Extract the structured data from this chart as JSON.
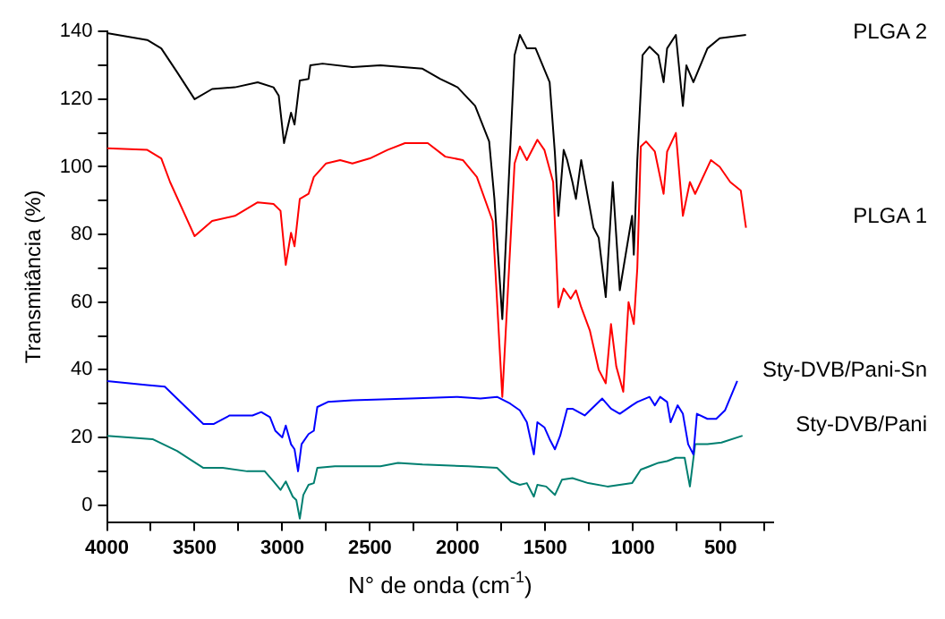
{
  "chart_data": {
    "type": "line",
    "xlabel": "N° de onda (cm$^{-1}$)",
    "ylabel": "Transmitância (%)",
    "xlim": [
      4000,
      200
    ],
    "xticks": [
      4000,
      {
        "value": 3750,
        "label": null
      },
      3500,
      {
        "value": 3250,
        "label": null
      },
      3000,
      {
        "value": 2750,
        "label": null
      },
      2500,
      {
        "value": 2250,
        "label": null
      },
      2000,
      {
        "value": 1750,
        "label": null
      },
      1500,
      {
        "value": 1250,
        "label": null
      },
      1000,
      {
        "value": 750,
        "label": null
      },
      500,
      {
        "value": 250,
        "label": null
      }
    ],
    "ylim": [
      -5,
      140
    ],
    "yticks": [
      0,
      {
        "value": 10,
        "label": null
      },
      20,
      {
        "value": 30,
        "label": null
      },
      40,
      {
        "value": 50,
        "label": null
      },
      60,
      {
        "value": 70,
        "label": null
      },
      80,
      {
        "value": 90,
        "label": null
      },
      100,
      {
        "value": 110,
        "label": null
      },
      120,
      {
        "value": 130,
        "label": null
      },
      140
    ],
    "grid": false,
    "legend": false,
    "series": [
      {
        "name": "PLGA 2",
        "color": "#000000",
        "x": [
          4000,
          3770,
          3690,
          3600,
          3500,
          3400,
          3270,
          3140,
          3050,
          3020,
          2990,
          2950,
          2930,
          2900,
          2850,
          2840,
          2770,
          2600,
          2440,
          2200,
          2100,
          2000,
          1900,
          1820,
          1790,
          1745,
          1675,
          1645,
          1605,
          1555,
          1475,
          1445,
          1425,
          1395,
          1375,
          1345,
          1325,
          1295,
          1255,
          1225,
          1195,
          1155,
          1115,
          1075,
          1005,
          995,
          975,
          945,
          905,
          855,
          825,
          805,
          755,
          715,
          695,
          655,
          575,
          505,
          355
        ],
        "values": [
          139.5,
          137.5,
          135,
          128,
          120,
          123,
          123.5,
          125,
          123.5,
          121,
          107,
          116,
          112.5,
          125.5,
          126,
          130,
          130.5,
          129.5,
          130,
          129,
          126,
          123.5,
          118,
          107.5,
          90.5,
          55,
          133,
          139,
          135,
          135,
          125,
          104,
          85.5,
          105,
          102,
          95.5,
          90.5,
          102,
          90.5,
          82,
          79,
          61.5,
          95.5,
          63.5,
          85.5,
          74,
          102,
          133,
          135.5,
          133,
          125,
          135,
          139,
          118,
          130,
          125,
          135,
          138,
          139
        ]
      },
      {
        "name": "PLGA 1",
        "color": "#ff0000",
        "x": [
          4000,
          3770,
          3690,
          3640,
          3500,
          3400,
          3270,
          3140,
          3050,
          3010,
          2980,
          2950,
          2930,
          2900,
          2850,
          2820,
          2750,
          2670,
          2600,
          2500,
          2400,
          2300,
          2170,
          2070,
          1970,
          1890,
          1800,
          1745,
          1675,
          1645,
          1605,
          1545,
          1505,
          1455,
          1425,
          1395,
          1355,
          1325,
          1295,
          1245,
          1195,
          1155,
          1125,
          1095,
          1055,
          1025,
          995,
          975,
          955,
          925,
          875,
          825,
          805,
          755,
          715,
          675,
          645,
          555,
          505,
          445,
          385,
          355
        ],
        "values": [
          105.5,
          105,
          102.5,
          95.5,
          79.5,
          84,
          85.5,
          89.5,
          89,
          87,
          71,
          80.5,
          76.5,
          90.5,
          92,
          97,
          101,
          102,
          101,
          102.5,
          105,
          107,
          107,
          103,
          102,
          97,
          84,
          32,
          101,
          106,
          102,
          108,
          105,
          95.5,
          58.5,
          64,
          61,
          63.5,
          58.5,
          51.5,
          40,
          36,
          53.5,
          41,
          33.5,
          60,
          53.5,
          70,
          106,
          107.5,
          104.5,
          92,
          104.5,
          110,
          85.5,
          95.5,
          92,
          102,
          100,
          95.5,
          93,
          82
        ]
      },
      {
        "name": "Sty-DVB/Pani-Sn",
        "color": "#0000ff",
        "x": [
          4000,
          3770,
          3670,
          3590,
          3450,
          3390,
          3300,
          3170,
          3120,
          3070,
          3040,
          3000,
          2980,
          2950,
          2930,
          2910,
          2890,
          2850,
          2820,
          2800,
          2740,
          2600,
          2270,
          2000,
          1870,
          1775,
          1700,
          1645,
          1605,
          1565,
          1545,
          1505,
          1475,
          1445,
          1415,
          1375,
          1345,
          1275,
          1175,
          1125,
          1075,
          1005,
          975,
          905,
          875,
          845,
          805,
          785,
          745,
          715,
          685,
          655,
          635,
          575,
          525,
          475,
          405
        ],
        "values": [
          36.7,
          35.5,
          35,
          31,
          24,
          24,
          26.5,
          26.5,
          27.5,
          26,
          22,
          20,
          23.5,
          18,
          16.5,
          10,
          18,
          21,
          22,
          29,
          30.5,
          31,
          31.5,
          32,
          31.5,
          32,
          30,
          28,
          24.5,
          15,
          24.5,
          23,
          19.5,
          16.5,
          20.5,
          28.5,
          28.5,
          26.5,
          31.5,
          28.5,
          27,
          29.5,
          30.5,
          32,
          29.5,
          32,
          30.5,
          24.5,
          29.5,
          27,
          18,
          15,
          27,
          25.5,
          25.5,
          28,
          36.7
        ]
      },
      {
        "name": "Sty-DVB/Pani",
        "color": "#007f70",
        "x": [
          4000,
          3740,
          3600,
          3450,
          3340,
          3200,
          3100,
          3050,
          3010,
          2980,
          2940,
          2920,
          2900,
          2880,
          2850,
          2820,
          2800,
          2700,
          2440,
          2340,
          2200,
          1940,
          1775,
          1695,
          1645,
          1605,
          1565,
          1545,
          1495,
          1445,
          1405,
          1345,
          1255,
          1145,
          1005,
          955,
          905,
          855,
          805,
          755,
          705,
          675,
          645,
          575,
          495,
          375
        ],
        "values": [
          20.5,
          19.5,
          16,
          11,
          11,
          10,
          10,
          7,
          4.5,
          7,
          2.5,
          1.5,
          -4,
          3,
          6,
          6.5,
          11,
          11.5,
          11.5,
          12.5,
          12,
          11.5,
          11,
          7,
          6,
          6.5,
          2.5,
          6,
          5.5,
          3,
          7.5,
          8,
          6.5,
          5.5,
          6.5,
          10.5,
          11.5,
          12.5,
          13,
          14,
          14,
          5.5,
          18,
          18,
          18.5,
          20.5
        ]
      }
    ]
  }
}
